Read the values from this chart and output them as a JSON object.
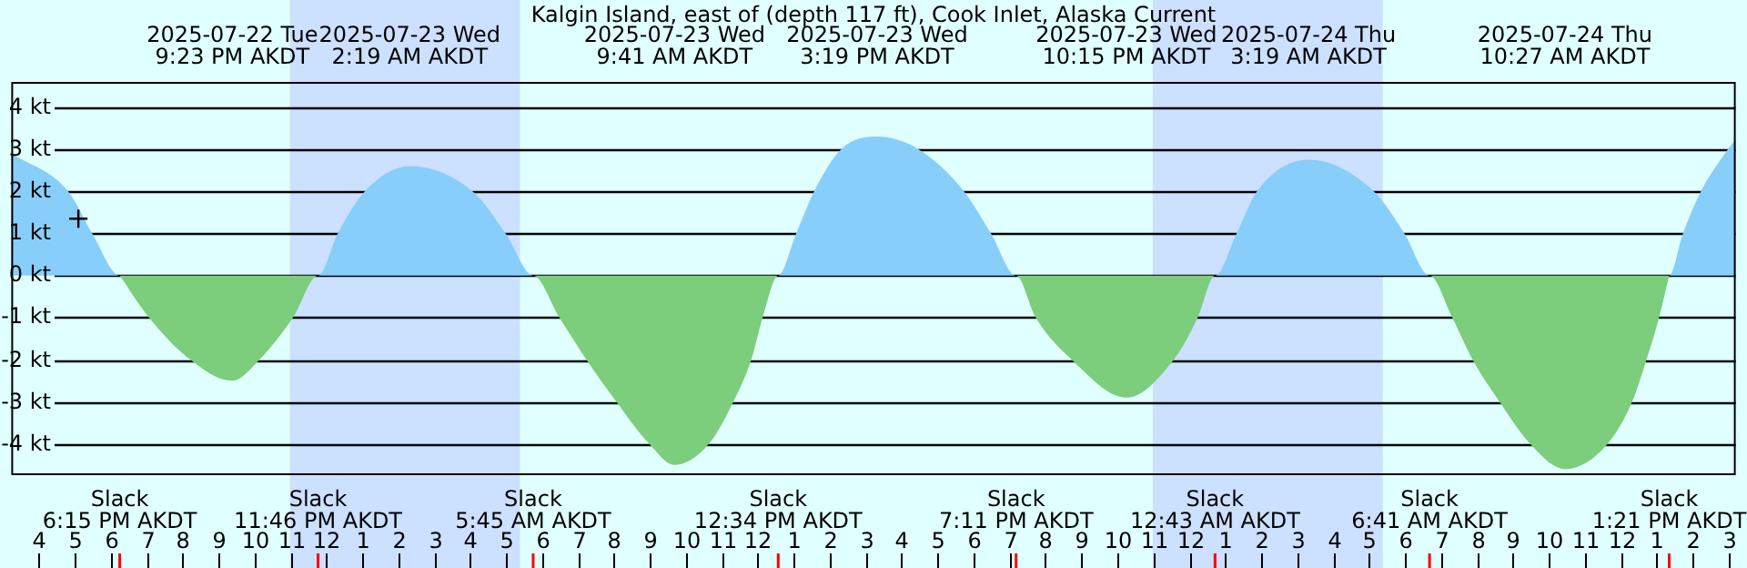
{
  "chart_data": {
    "type": "area",
    "title": "Kalgin Island, east of (depth 117 ft), Cook Inlet, Alaska Current",
    "xlim": [
      "2025-07-22T15:14",
      "2025-07-24T15:12"
    ],
    "ylim": [
      -4.7,
      4.6
    ],
    "yticks": [
      {
        "value": 4,
        "label": "4 kt"
      },
      {
        "value": 3,
        "label": "3 kt"
      },
      {
        "value": 2,
        "label": "2 kt"
      },
      {
        "value": 1,
        "label": "1 kt"
      },
      {
        "value": 0,
        "label": "0 kt"
      },
      {
        "value": -1,
        "label": "-1 kt"
      },
      {
        "value": -2,
        "label": "-2 kt"
      },
      {
        "value": -3,
        "label": "-3 kt"
      },
      {
        "value": -4,
        "label": "-4 kt"
      }
    ],
    "xticks": [
      {
        "value": "2025-07-22T16:00",
        "label": "4"
      },
      {
        "value": "2025-07-22T17:00",
        "label": "5"
      },
      {
        "value": "2025-07-22T18:00",
        "label": "6"
      },
      {
        "value": "2025-07-22T19:00",
        "label": "7"
      },
      {
        "value": "2025-07-22T20:00",
        "label": "8"
      },
      {
        "value": "2025-07-22T21:00",
        "label": "9"
      },
      {
        "value": "2025-07-22T22:00",
        "label": "10"
      },
      {
        "value": "2025-07-22T23:00",
        "label": "11"
      },
      {
        "value": "2025-07-23T00:00",
        "label": "12"
      },
      {
        "value": "2025-07-23T01:00",
        "label": "1"
      },
      {
        "value": "2025-07-23T02:00",
        "label": "2"
      },
      {
        "value": "2025-07-23T03:00",
        "label": "3"
      },
      {
        "value": "2025-07-23T04:00",
        "label": "4"
      },
      {
        "value": "2025-07-23T05:00",
        "label": "5"
      },
      {
        "value": "2025-07-23T06:00",
        "label": "6"
      },
      {
        "value": "2025-07-23T07:00",
        "label": "7"
      },
      {
        "value": "2025-07-23T08:00",
        "label": "8"
      },
      {
        "value": "2025-07-23T09:00",
        "label": "9"
      },
      {
        "value": "2025-07-23T10:00",
        "label": "10"
      },
      {
        "value": "2025-07-23T11:00",
        "label": "11"
      },
      {
        "value": "2025-07-23T12:00",
        "label": "12"
      },
      {
        "value": "2025-07-23T13:00",
        "label": "1"
      },
      {
        "value": "2025-07-23T14:00",
        "label": "2"
      },
      {
        "value": "2025-07-23T15:00",
        "label": "3"
      },
      {
        "value": "2025-07-23T16:00",
        "label": "4"
      },
      {
        "value": "2025-07-23T17:00",
        "label": "5"
      },
      {
        "value": "2025-07-23T18:00",
        "label": "6"
      },
      {
        "value": "2025-07-23T19:00",
        "label": "7"
      },
      {
        "value": "2025-07-23T20:00",
        "label": "8"
      },
      {
        "value": "2025-07-23T21:00",
        "label": "9"
      },
      {
        "value": "2025-07-23T22:00",
        "label": "10"
      },
      {
        "value": "2025-07-23T23:00",
        "label": "11"
      },
      {
        "value": "2025-07-24T00:00",
        "label": "12"
      },
      {
        "value": "2025-07-24T01:00",
        "label": "1"
      },
      {
        "value": "2025-07-24T02:00",
        "label": "2"
      },
      {
        "value": "2025-07-24T03:00",
        "label": "3"
      },
      {
        "value": "2025-07-24T04:00",
        "label": "4"
      },
      {
        "value": "2025-07-24T05:00",
        "label": "5"
      },
      {
        "value": "2025-07-24T06:00",
        "label": "6"
      },
      {
        "value": "2025-07-24T07:00",
        "label": "7"
      },
      {
        "value": "2025-07-24T08:00",
        "label": "8"
      },
      {
        "value": "2025-07-24T09:00",
        "label": "9"
      },
      {
        "value": "2025-07-24T10:00",
        "label": "10"
      },
      {
        "value": "2025-07-24T11:00",
        "label": "11"
      },
      {
        "value": "2025-07-24T12:00",
        "label": "12"
      },
      {
        "value": "2025-07-24T13:00",
        "label": "1"
      },
      {
        "value": "2025-07-24T14:00",
        "label": "2"
      },
      {
        "value": "2025-07-24T15:00",
        "label": "3"
      }
    ],
    "grid": "y",
    "series": [
      {
        "color": "#87cefa",
        "x": [
          "2025-07-22T15:14",
          "2025-07-22T16:49",
          "2025-07-22T17:29",
          "2025-07-22T18:15",
          "2025-07-22T23:46",
          "2025-07-23T00:19",
          "2025-07-23T01:04",
          "2025-07-23T02:19",
          "2025-07-23T04:04",
          "2025-07-23T04:59",
          "2025-07-23T05:45",
          "2025-07-23T12:34",
          "2025-07-23T13:04",
          "2025-07-23T13:34",
          "2025-07-23T14:19",
          "2025-07-23T15:19",
          "2025-07-23T16:28",
          "2025-07-23T17:44",
          "2025-07-23T18:29",
          "2025-07-23T19:11",
          "2025-07-24T00:43",
          "2025-07-24T01:19",
          "2025-07-24T01:53",
          "2025-07-24T03:19",
          "2025-07-24T05:08",
          "2025-07-24T05:59",
          "2025-07-24T06:41",
          "2025-07-24T13:21",
          "2025-07-24T13:44",
          "2025-07-24T14:14",
          "2025-07-24T14:59",
          "2025-07-24T15:12"
        ],
        "values": [
          2.9,
          2,
          1,
          0,
          0,
          1,
          2,
          2.6,
          2,
          1,
          0,
          0,
          1,
          2,
          3,
          3.3,
          3,
          2,
          1,
          0,
          0,
          1,
          2,
          2.75,
          2,
          1,
          0,
          0,
          1,
          2,
          3,
          3.25
        ]
      },
      {
        "color": "#7ccd7c",
        "x": [
          "2025-07-22T18:15",
          "2025-07-22T19:04",
          "2025-07-22T20:13",
          "2025-07-22T21:23",
          "2025-07-22T22:08",
          "2025-07-22T23:04",
          "2025-07-22T23:46",
          "2025-07-23T05:45",
          "2025-07-23T06:29",
          "2025-07-23T07:14",
          "2025-07-23T08:04",
          "2025-07-23T08:59",
          "2025-07-23T09:41",
          "2025-07-23T10:38",
          "2025-07-23T11:19",
          "2025-07-23T11:49",
          "2025-07-23T12:08",
          "2025-07-23T12:34",
          "2025-07-23T19:11",
          "2025-07-23T19:44",
          "2025-07-23T20:44",
          "2025-07-23T22:15",
          "2025-07-23T23:34",
          "2025-07-24T00:14",
          "2025-07-24T00:43",
          "2025-07-24T06:41",
          "2025-07-24T07:19",
          "2025-07-24T07:53",
          "2025-07-24T08:38",
          "2025-07-24T09:29",
          "2025-07-24T10:27",
          "2025-07-24T11:38",
          "2025-07-24T12:19",
          "2025-07-24T12:43",
          "2025-07-24T13:04",
          "2025-07-24T13:21"
        ],
        "values": [
          0,
          -1,
          -2,
          -2.5,
          -2,
          -1,
          0,
          0,
          -1,
          -2,
          -3,
          -4,
          -4.5,
          -4,
          -3,
          -2,
          -1,
          0,
          0,
          -1,
          -2,
          -2.9,
          -2,
          -1,
          0,
          0,
          -1,
          -2,
          -3,
          -4,
          -4.6,
          -4,
          -3,
          -2,
          -1,
          0
        ]
      },
      {
        "type": "scatter",
        "color": "#000000",
        "x": [
          "2025-07-22T17:06"
        ],
        "values": [
          1.35
        ]
      }
    ],
    "bands": [
      {
        "axis": "x",
        "from": "2025-07-22T22:59",
        "to": "2025-07-23T05:23",
        "color": "#cce0ff"
      },
      {
        "axis": "x",
        "from": "2025-07-23T22:59",
        "to": "2025-07-24T05:23",
        "color": "#cce0ff"
      }
    ],
    "ref_lines": [
      {
        "axis": "x",
        "value": "2025-07-22T18:15",
        "label": "Slack\n6:15 PM AKDT",
        "color": "#ff0000"
      },
      {
        "axis": "x",
        "value": "2025-07-22T23:46",
        "label": "Slack\n11:46 PM AKDT",
        "color": "#ff0000"
      },
      {
        "axis": "x",
        "value": "2025-07-23T05:45",
        "label": "Slack\n5:45 AM AKDT",
        "color": "#ff0000"
      },
      {
        "axis": "x",
        "value": "2025-07-23T12:34",
        "label": "Slack\n12:34 PM AKDT",
        "color": "#ff0000"
      },
      {
        "axis": "x",
        "value": "2025-07-23T19:11",
        "label": "Slack\n7:11 PM AKDT",
        "color": "#ff0000"
      },
      {
        "axis": "x",
        "value": "2025-07-24T00:43",
        "label": "Slack\n12:43 AM AKDT",
        "color": "#ff0000"
      },
      {
        "axis": "x",
        "value": "2025-07-24T06:41",
        "label": "Slack\n6:41 AM AKDT",
        "color": "#ff0000"
      },
      {
        "axis": "x",
        "value": "2025-07-24T13:21",
        "label": "Slack\n1:21 PM AKDT",
        "color": "#ff0000"
      }
    ],
    "annotations": [
      "2025-07-22 Tue\n9:23 PM AKDT",
      "2025-07-23 Wed\n2:19 AM AKDT",
      "2025-07-23 Wed\n9:41 AM AKDT",
      "2025-07-23 Wed\n3:19 PM AKDT",
      "2025-07-23 Wed\n10:15 PM AKDT",
      "2025-07-24 Thu\n3:19 AM AKDT",
      "2025-07-24 Thu\n10:27 AM AKDT"
    ]
  }
}
